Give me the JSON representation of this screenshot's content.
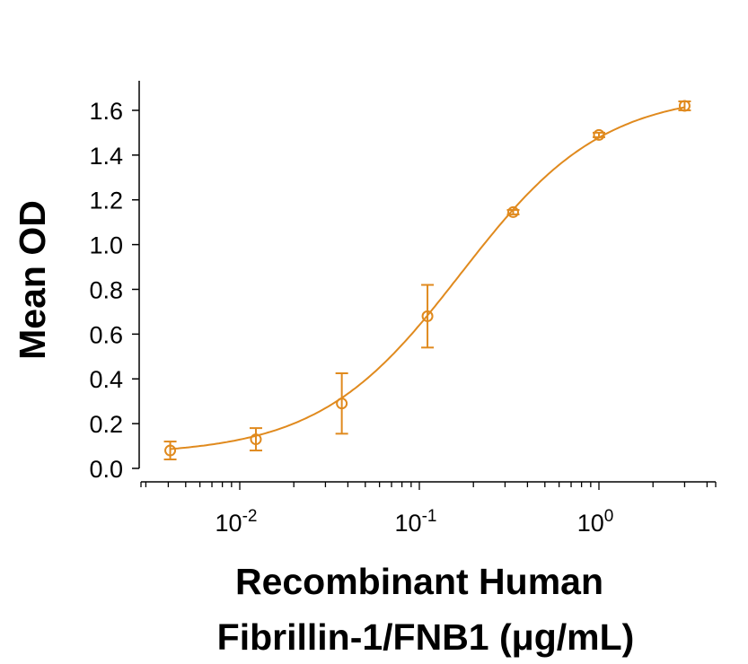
{
  "chart_data": {
    "type": "scatter",
    "xlabel_lines": [
      "Recombinant Human",
      "Fibrillin-1/FNB1 (μg/mL)"
    ],
    "ylabel": "Mean OD",
    "x_scale": "log",
    "xlim": [
      0.0029,
      4.5
    ],
    "ylim": [
      0.0,
      1.7
    ],
    "x_tick_labels": [
      {
        "base": "10",
        "exp": "-2",
        "value": 0.01
      },
      {
        "base": "10",
        "exp": "-1",
        "value": 0.1
      },
      {
        "base": "10",
        "exp": "0",
        "value": 1
      }
    ],
    "y_ticks": [
      0.0,
      0.2,
      0.4,
      0.6,
      0.8,
      1.0,
      1.2,
      1.4,
      1.6
    ],
    "y_tick_labels": [
      "0.0",
      "0.2",
      "0.4",
      "0.6",
      "0.8",
      "1.0",
      "1.2",
      "1.4",
      "1.6"
    ],
    "grid": false,
    "color": "#E08A1E",
    "series": [
      {
        "marker": "open-circle",
        "fit": "sigmoidal curve",
        "x": [
          0.0041,
          0.0123,
          0.037,
          0.111,
          0.333,
          1.0,
          3.0
        ],
        "y": [
          0.08,
          0.13,
          0.29,
          0.68,
          1.145,
          1.49,
          1.62
        ],
        "error": [
          0.04,
          0.05,
          0.135,
          0.14,
          0.01,
          0.01,
          0.02
        ]
      }
    ]
  }
}
